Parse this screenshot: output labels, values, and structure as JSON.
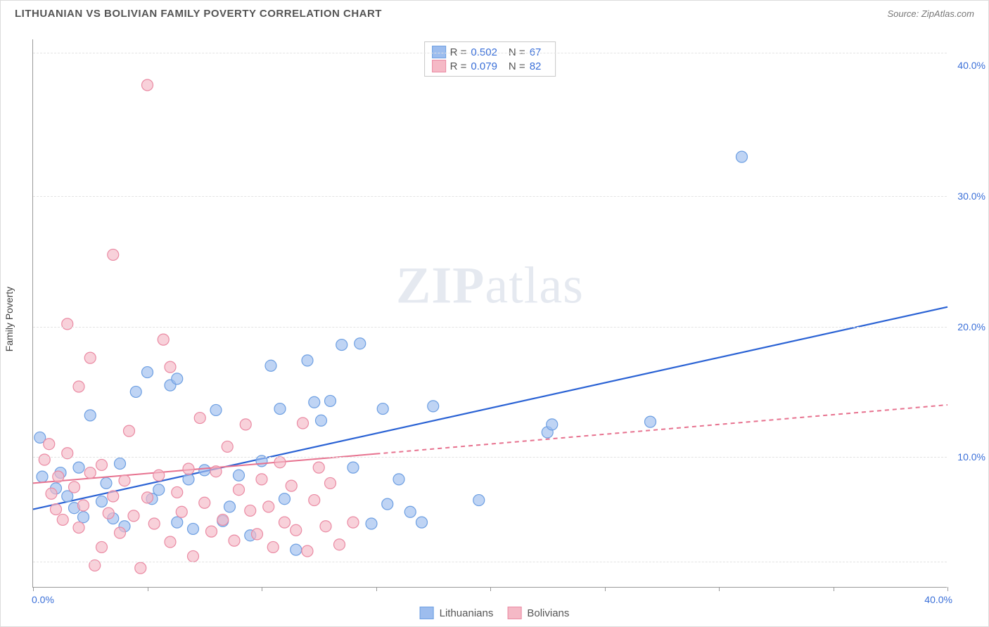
{
  "header": {
    "title": "LITHUANIAN VS BOLIVIAN FAMILY POVERTY CORRELATION CHART",
    "source_label": "Source: ",
    "source_value": "ZipAtlas.com"
  },
  "chart": {
    "type": "scatter",
    "ylabel": "Family Poverty",
    "background_color": "#ffffff",
    "grid_color": "#e3e3e3",
    "axis_color": "#999999",
    "tick_label_color": "#3a6fd8",
    "xlim": [
      0,
      40
    ],
    "ylim": [
      0,
      42
    ],
    "xtick_positions": [
      0,
      5,
      10,
      15,
      20,
      25,
      30,
      35,
      40
    ],
    "xtick_labels": {
      "0": "0.0%",
      "40": "40.0%"
    },
    "ytick_positions": [
      10,
      20,
      30,
      40
    ],
    "ytick_labels": {
      "10": "10.0%",
      "20": "20.0%",
      "30": "30.0%",
      "40": "40.0%"
    },
    "gridlines_y": [
      2,
      10,
      20,
      30,
      41
    ],
    "watermark": {
      "text_bold": "ZIP",
      "text_rest": "atlas",
      "color": "rgba(160,175,200,0.28)",
      "fontsize": 74
    },
    "series": [
      {
        "name": "Lithuanians",
        "marker_color": "#9dbdee",
        "marker_border": "#6d9fe2",
        "marker_radius": 8,
        "marker_opacity": 0.65,
        "R": "0.502",
        "N": "67",
        "trend": {
          "x1": 0,
          "y1": 6.0,
          "x2": 40,
          "y2": 21.5,
          "solid_until_x": 40,
          "color": "#2a62d4",
          "width": 2.2
        },
        "points": [
          [
            0.3,
            11.5
          ],
          [
            0.4,
            8.5
          ],
          [
            1.0,
            7.6
          ],
          [
            1.2,
            8.8
          ],
          [
            1.5,
            7.0
          ],
          [
            1.8,
            6.1
          ],
          [
            2.0,
            9.2
          ],
          [
            2.2,
            5.4
          ],
          [
            2.5,
            13.2
          ],
          [
            3.0,
            6.6
          ],
          [
            3.2,
            8.0
          ],
          [
            3.5,
            5.3
          ],
          [
            3.8,
            9.5
          ],
          [
            4.0,
            4.7
          ],
          [
            4.5,
            15.0
          ],
          [
            5.0,
            16.5
          ],
          [
            5.2,
            6.8
          ],
          [
            5.5,
            7.5
          ],
          [
            6.0,
            15.5
          ],
          [
            6.3,
            5.0
          ],
          [
            6.3,
            16.0
          ],
          [
            6.8,
            8.3
          ],
          [
            7.0,
            4.5
          ],
          [
            7.5,
            9.0
          ],
          [
            8.0,
            13.6
          ],
          [
            8.3,
            5.1
          ],
          [
            8.6,
            6.2
          ],
          [
            9.0,
            8.6
          ],
          [
            9.5,
            4.0
          ],
          [
            10.0,
            9.7
          ],
          [
            10.4,
            17.0
          ],
          [
            10.8,
            13.7
          ],
          [
            11.0,
            6.8
          ],
          [
            11.5,
            2.9
          ],
          [
            12.0,
            17.4
          ],
          [
            12.3,
            14.2
          ],
          [
            12.6,
            12.8
          ],
          [
            13.0,
            14.3
          ],
          [
            13.5,
            18.6
          ],
          [
            14.0,
            9.2
          ],
          [
            14.3,
            18.7
          ],
          [
            14.8,
            4.9
          ],
          [
            15.3,
            13.7
          ],
          [
            15.5,
            6.4
          ],
          [
            16.0,
            8.3
          ],
          [
            16.5,
            5.8
          ],
          [
            17.0,
            5.0
          ],
          [
            17.5,
            13.9
          ],
          [
            19.5,
            6.7
          ],
          [
            22.5,
            11.9
          ],
          [
            22.7,
            12.5
          ],
          [
            27.0,
            12.7
          ],
          [
            31.0,
            33.0
          ]
        ]
      },
      {
        "name": "Bolivians",
        "marker_color": "#f5b9c6",
        "marker_border": "#ea8aa3",
        "marker_radius": 8,
        "marker_opacity": 0.65,
        "R": "0.079",
        "N": "82",
        "trend": {
          "x1": 0,
          "y1": 8.0,
          "x2": 40,
          "y2": 14.0,
          "solid_until_x": 15,
          "color": "#e7728f",
          "width": 2.0,
          "dash": "6,5"
        },
        "points": [
          [
            0.5,
            9.8
          ],
          [
            0.7,
            11.0
          ],
          [
            0.8,
            7.2
          ],
          [
            1.0,
            6.0
          ],
          [
            1.1,
            8.5
          ],
          [
            1.3,
            5.2
          ],
          [
            1.5,
            10.3
          ],
          [
            1.5,
            20.2
          ],
          [
            1.8,
            7.7
          ],
          [
            2.0,
            4.6
          ],
          [
            2.0,
            15.4
          ],
          [
            2.2,
            6.3
          ],
          [
            2.5,
            8.8
          ],
          [
            2.5,
            17.6
          ],
          [
            2.7,
            1.7
          ],
          [
            3.0,
            3.1
          ],
          [
            3.0,
            9.4
          ],
          [
            3.3,
            5.7
          ],
          [
            3.5,
            7.0
          ],
          [
            3.5,
            25.5
          ],
          [
            3.8,
            4.2
          ],
          [
            4.0,
            8.2
          ],
          [
            4.2,
            12.0
          ],
          [
            4.4,
            5.5
          ],
          [
            4.7,
            1.5
          ],
          [
            5.0,
            6.9
          ],
          [
            5.0,
            38.5
          ],
          [
            5.3,
            4.9
          ],
          [
            5.5,
            8.6
          ],
          [
            5.7,
            19.0
          ],
          [
            6.0,
            3.5
          ],
          [
            6.0,
            16.9
          ],
          [
            6.3,
            7.3
          ],
          [
            6.5,
            5.8
          ],
          [
            6.8,
            9.1
          ],
          [
            7.0,
            2.4
          ],
          [
            7.3,
            13.0
          ],
          [
            7.5,
            6.5
          ],
          [
            7.8,
            4.3
          ],
          [
            8.0,
            8.9
          ],
          [
            8.3,
            5.2
          ],
          [
            8.5,
            10.8
          ],
          [
            8.8,
            3.6
          ],
          [
            9.0,
            7.5
          ],
          [
            9.3,
            12.5
          ],
          [
            9.5,
            5.9
          ],
          [
            9.8,
            4.1
          ],
          [
            10.0,
            8.3
          ],
          [
            10.3,
            6.2
          ],
          [
            10.5,
            3.1
          ],
          [
            10.8,
            9.6
          ],
          [
            11.0,
            5.0
          ],
          [
            11.3,
            7.8
          ],
          [
            11.5,
            4.4
          ],
          [
            11.8,
            12.6
          ],
          [
            12.0,
            2.8
          ],
          [
            12.3,
            6.7
          ],
          [
            12.5,
            9.2
          ],
          [
            12.8,
            4.7
          ],
          [
            13.0,
            8.0
          ],
          [
            13.4,
            3.3
          ],
          [
            14.0,
            5.0
          ]
        ]
      }
    ],
    "legend_bottom": [
      {
        "label": "Lithuanians",
        "fill": "#9dbdee",
        "border": "#6d9fe2"
      },
      {
        "label": "Bolivians",
        "fill": "#f5b9c6",
        "border": "#ea8aa3"
      }
    ]
  }
}
